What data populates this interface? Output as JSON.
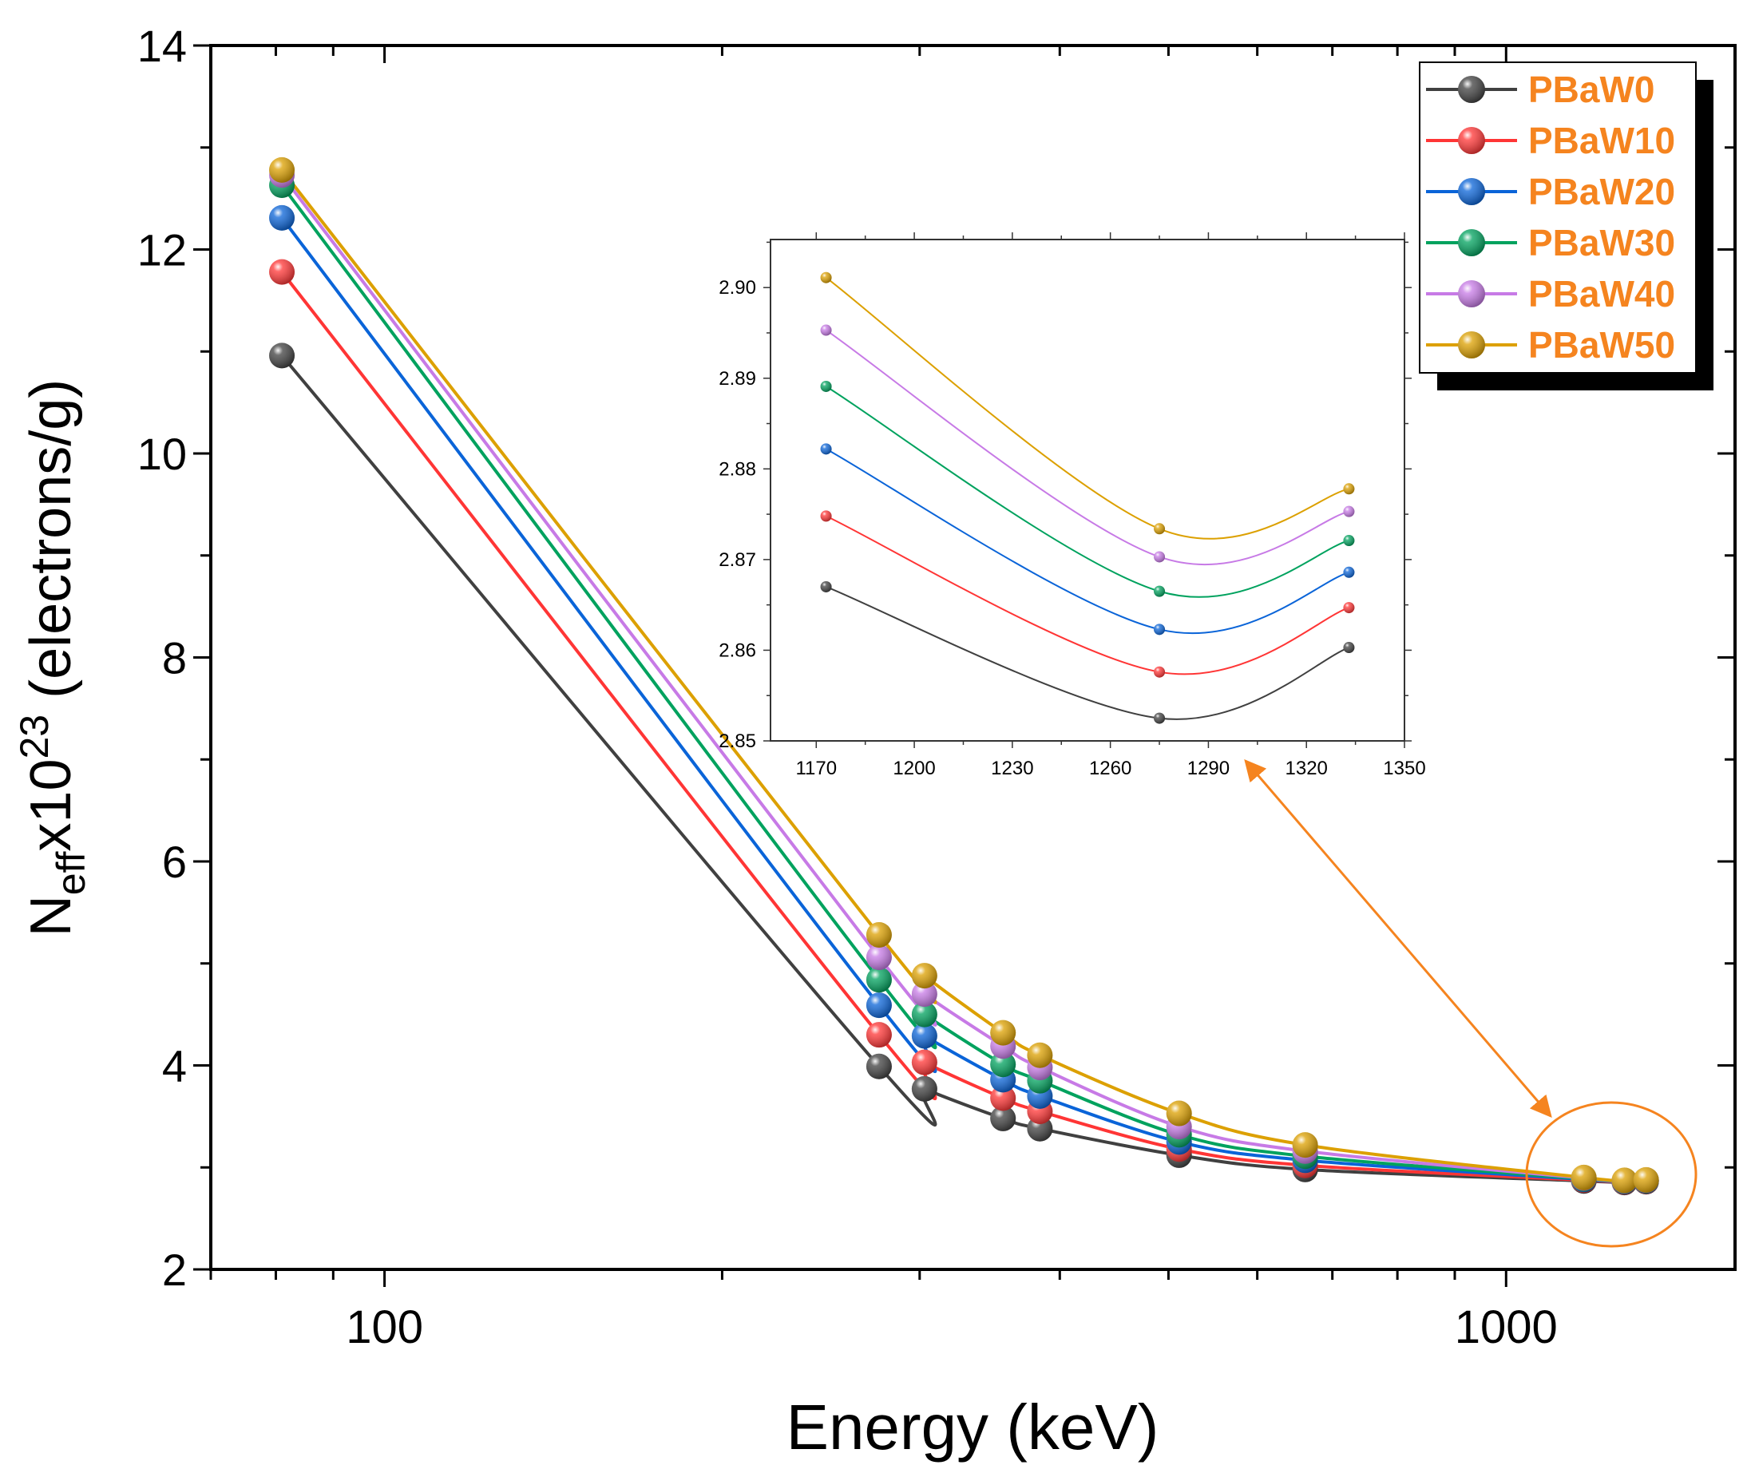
{
  "chart_data": {
    "type": "line",
    "xlabel": "Energy (keV)",
    "ylabel_parts": {
      "base": "N",
      "sub": "eff",
      "mid": "x10",
      "sup": "23",
      "unit": " (electrons/g)"
    },
    "xscale": "log",
    "xlim": [
      70,
      1600
    ],
    "ylim": [
      2,
      14
    ],
    "yticks": [
      2,
      4,
      6,
      8,
      10,
      12,
      14
    ],
    "xticks_labeled": [
      100,
      1000
    ],
    "x": [
      81,
      276,
      303,
      356,
      384,
      511,
      662,
      1173,
      1275,
      1333
    ],
    "series": [
      {
        "name": "PBaW0",
        "color": "#404040",
        "values": [
          10.96,
          3.99,
          3.77,
          3.48,
          3.38,
          3.12,
          2.98,
          2.867,
          2.8525,
          2.8603
        ]
      },
      {
        "name": "PBaW10",
        "color": "#ff3535",
        "values": [
          11.78,
          4.3,
          4.03,
          3.68,
          3.55,
          3.18,
          3.02,
          2.8748,
          2.8576,
          2.8647
        ]
      },
      {
        "name": "PBaW20",
        "color": "#0a64d8",
        "values": [
          12.31,
          4.59,
          4.29,
          3.86,
          3.7,
          3.25,
          3.07,
          2.8822,
          2.8623,
          2.8686
        ]
      },
      {
        "name": "PBaW30",
        "color": "#00a25e",
        "values": [
          12.63,
          4.84,
          4.5,
          4.01,
          3.85,
          3.32,
          3.11,
          2.8891,
          2.8665,
          2.8721
        ]
      },
      {
        "name": "PBaW40",
        "color": "#c77ae6",
        "values": [
          12.73,
          5.06,
          4.7,
          4.19,
          3.98,
          3.4,
          3.16,
          2.8953,
          2.8703,
          2.8753
        ]
      },
      {
        "name": "PBaW50",
        "color": "#dca000",
        "values": [
          12.78,
          5.28,
          4.88,
          4.32,
          4.1,
          3.53,
          3.22,
          2.9011,
          2.8734,
          2.8778
        ]
      }
    ],
    "legend": {
      "placement": "top-right",
      "text_color": "#f5841f"
    },
    "annotation_color": "#f5841f",
    "inset": {
      "type": "line",
      "x_indices": [
        7,
        8,
        9
      ],
      "xlim": [
        1156,
        1350
      ],
      "ylim": [
        2.85,
        2.9053
      ],
      "xticks": [
        1170,
        1200,
        1230,
        1260,
        1290,
        1320,
        1350
      ],
      "yticks": [
        "2.85",
        "2.86",
        "2.87",
        "2.88",
        "2.89",
        "2.90"
      ]
    }
  }
}
